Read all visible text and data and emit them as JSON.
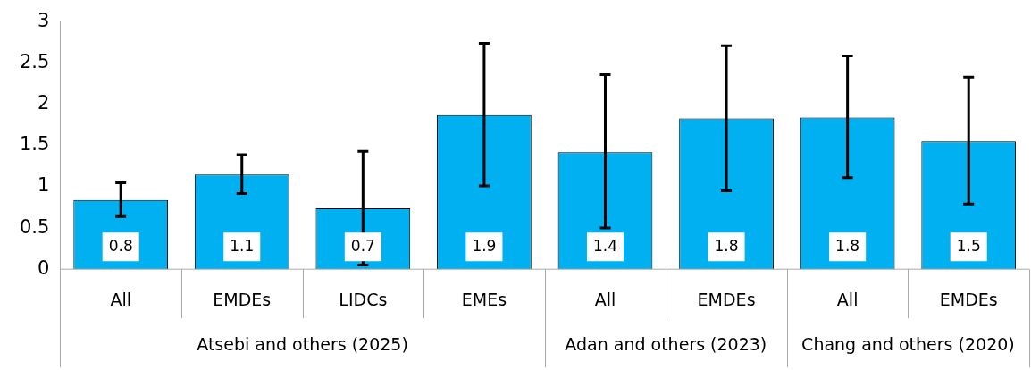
{
  "chart_data": {
    "type": "bar",
    "categories": [
      "All",
      "EMDEs",
      "LIDCs",
      "EMEs",
      "All",
      "EMDEs",
      "All",
      "EMDEs"
    ],
    "values": [
      0.84,
      1.15,
      0.74,
      1.87,
      1.42,
      1.83,
      1.84,
      1.55
    ],
    "value_labels": [
      "0.8",
      "1.1",
      "0.7",
      "1.9",
      "1.4",
      "1.8",
      "1.8",
      "1.5"
    ],
    "errors": [
      [
        0.64,
        1.05
      ],
      [
        0.92,
        1.39
      ],
      [
        0.05,
        1.43
      ],
      [
        1.01,
        2.74
      ],
      [
        0.5,
        2.36
      ],
      [
        0.95,
        2.71
      ],
      [
        1.11,
        2.59
      ],
      [
        0.79,
        2.33
      ]
    ],
    "color": "#00b0f0",
    "annotations": [
      "Atsebi and others (2025)",
      "Adan and others (2023)",
      "Chang and others (2020)"
    ],
    "ylim": [
      0,
      3
    ],
    "yticks": [
      0,
      0.5,
      1,
      1.5,
      2,
      2.5,
      3
    ],
    "grid": false,
    "legend": false
  }
}
